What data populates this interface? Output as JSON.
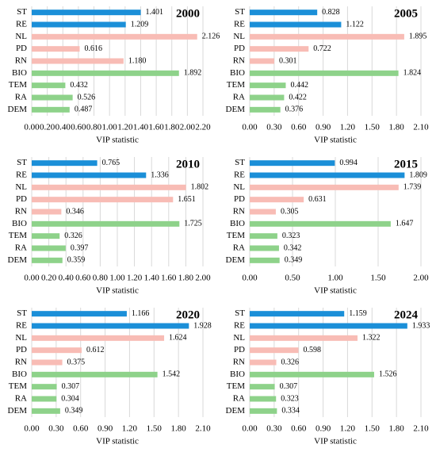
{
  "chart_data": [
    {
      "type": "bar",
      "orientation": "horizontal",
      "title": "2000",
      "x_label": "VIP statistic",
      "categories": [
        "ST",
        "RE",
        "NL",
        "PD",
        "RN",
        "BIO",
        "TEM",
        "RA",
        "DEM"
      ],
      "values": [
        1.401,
        1.209,
        2.126,
        0.616,
        1.18,
        1.892,
        0.432,
        0.526,
        0.487
      ],
      "value_labels": [
        "1.401",
        "1.209",
        "2.126",
        "0.616",
        "1.180",
        "1.892",
        "0.432",
        "0.526",
        "0.487"
      ],
      "colors": [
        "#1b8fd8",
        "#1b8fd8",
        "#f8bcb5",
        "#f8bcb5",
        "#f8bcb5",
        "#8ed28a",
        "#8ed28a",
        "#8ed28a",
        "#8ed28a"
      ],
      "xlim": [
        0,
        2.2
      ],
      "grid": true,
      "xticks": [
        {
          "value": 0,
          "label": "0.00"
        },
        {
          "value": 0.2,
          "label": "0.20"
        },
        {
          "value": 0.4,
          "label": "0.40"
        },
        {
          "value": 0.6,
          "label": "0.60"
        },
        {
          "value": 0.8,
          "label": "0.80"
        },
        {
          "value": 1,
          "label": "1.00"
        },
        {
          "value": 1.2,
          "label": "1.20"
        },
        {
          "value": 1.4,
          "label": "1.40"
        },
        {
          "value": 1.6,
          "label": "1.60"
        },
        {
          "value": 1.8,
          "label": "1.80"
        },
        {
          "value": 2,
          "label": "2.00"
        },
        {
          "value": 2.2,
          "label": "2.20"
        }
      ]
    },
    {
      "type": "bar",
      "orientation": "horizontal",
      "title": "2005",
      "x_label": "VIP statistic",
      "categories": [
        "ST",
        "RE",
        "NL",
        "PD",
        "RN",
        "BIO",
        "TEM",
        "RA",
        "DEM"
      ],
      "values": [
        0.828,
        1.122,
        1.895,
        0.722,
        0.301,
        1.824,
        0.442,
        0.422,
        0.376
      ],
      "colors": [
        "#1b8fd8",
        "#1b8fd8",
        "#f8bcb5",
        "#f8bcb5",
        "#f8bcb5",
        "#8ed28a",
        "#8ed28a",
        "#8ed28a",
        "#8ed28a"
      ],
      "xlim": [
        0,
        2.1
      ],
      "grid": true,
      "xticks": [
        {
          "value": 0,
          "label": "0.00"
        },
        {
          "value": 0.3,
          "label": "0.30"
        },
        {
          "value": 0.6,
          "label": "0.60"
        },
        {
          "value": 0.9,
          "label": "0.90"
        },
        {
          "value": 1.2,
          "label": "1.20"
        },
        {
          "value": 1.5,
          "label": "1.50"
        },
        {
          "value": 1.8,
          "label": "1.80"
        },
        {
          "value": 2.1,
          "label": "2.10"
        }
      ]
    },
    {
      "type": "bar",
      "orientation": "horizontal",
      "title": "2010",
      "x_label": "VIP statistic",
      "categories": [
        "ST",
        "RE",
        "NL",
        "PD",
        "RN",
        "BIO",
        "TEM",
        "RA",
        "DEM"
      ],
      "values": [
        0.765,
        1.336,
        1.802,
        1.651,
        0.346,
        1.725,
        0.326,
        0.397,
        0.359
      ],
      "colors": [
        "#1b8fd8",
        "#1b8fd8",
        "#f8bcb5",
        "#f8bcb5",
        "#f8bcb5",
        "#8ed28a",
        "#8ed28a",
        "#8ed28a",
        "#8ed28a"
      ],
      "xlim": [
        0,
        2
      ],
      "grid": true,
      "xticks": [
        {
          "value": 0,
          "label": "0.00"
        },
        {
          "value": 0.2,
          "label": "0.20"
        },
        {
          "value": 0.4,
          "label": "0.40"
        },
        {
          "value": 0.6,
          "label": "0.60"
        },
        {
          "value": 0.8,
          "label": "0.80"
        },
        {
          "value": 1,
          "label": "1.00"
        },
        {
          "value": 1.2,
          "label": "1.20"
        },
        {
          "value": 1.4,
          "label": "1.40"
        },
        {
          "value": 1.6,
          "label": "1.60"
        },
        {
          "value": 1.8,
          "label": "1.80"
        },
        {
          "value": 2,
          "label": "2.00"
        }
      ]
    },
    {
      "type": "bar",
      "orientation": "horizontal",
      "title": "2015",
      "x_label": "VIP statistic",
      "categories": [
        "ST",
        "RE",
        "NL",
        "PD",
        "RN",
        "BIO",
        "TEM",
        "RA",
        "DEM"
      ],
      "values": [
        0.994,
        1.809,
        1.739,
        0.631,
        0.305,
        1.647,
        0.323,
        0.342,
        0.349
      ],
      "colors": [
        "#1b8fd8",
        "#1b8fd8",
        "#f8bcb5",
        "#f8bcb5",
        "#f8bcb5",
        "#8ed28a",
        "#8ed28a",
        "#8ed28a",
        "#8ed28a"
      ],
      "xlim": [
        0,
        2
      ],
      "grid": true,
      "xticks": [
        {
          "value": 0,
          "label": "0.00"
        },
        {
          "value": 0.5,
          "label": "0.50"
        },
        {
          "value": 1,
          "label": "1.00"
        },
        {
          "value": 1.5,
          "label": "1.50"
        },
        {
          "value": 2,
          "label": "2.00"
        }
      ]
    },
    {
      "type": "bar",
      "orientation": "horizontal",
      "title": "2020",
      "x_label": "VIP statistic",
      "categories": [
        "ST",
        "RE",
        "NL",
        "PD",
        "RN",
        "BIO",
        "TEM",
        "RA",
        "DEM"
      ],
      "values": [
        1.166,
        1.928,
        1.624,
        0.612,
        0.375,
        1.542,
        0.307,
        0.304,
        0.349
      ],
      "colors": [
        "#1b8fd8",
        "#1b8fd8",
        "#f8bcb5",
        "#f8bcb5",
        "#f8bcb5",
        "#8ed28a",
        "#8ed28a",
        "#8ed28a",
        "#8ed28a"
      ],
      "xlim": [
        0,
        2.1
      ],
      "grid": true,
      "xticks": [
        {
          "value": 0,
          "label": "0.00"
        },
        {
          "value": 0.3,
          "label": "0.30"
        },
        {
          "value": 0.6,
          "label": "0.60"
        },
        {
          "value": 0.9,
          "label": "0.90"
        },
        {
          "value": 1.2,
          "label": "1.20"
        },
        {
          "value": 1.5,
          "label": "1.50"
        },
        {
          "value": 1.8,
          "label": "1.80"
        },
        {
          "value": 2.1,
          "label": "2.10"
        }
      ]
    },
    {
      "type": "bar",
      "orientation": "horizontal",
      "title": "2024",
      "x_label": "VIP statistic",
      "categories": [
        "ST",
        "RE",
        "NL",
        "PD",
        "RN",
        "BIO",
        "TEM",
        "RA",
        "DEM"
      ],
      "values": [
        1.159,
        1.933,
        1.322,
        0.598,
        0.326,
        1.526,
        0.307,
        0.323,
        0.334
      ],
      "colors": [
        "#1b8fd8",
        "#1b8fd8",
        "#f8bcb5",
        "#f8bcb5",
        "#f8bcb5",
        "#8ed28a",
        "#8ed28a",
        "#8ed28a",
        "#8ed28a"
      ],
      "xlim": [
        0,
        2.1
      ],
      "grid": true,
      "xticks": [
        {
          "value": 0,
          "label": "0.00"
        },
        {
          "value": 0.3,
          "label": "0.30"
        },
        {
          "value": 0.6,
          "label": "0.60"
        },
        {
          "value": 0.9,
          "label": "0.90"
        },
        {
          "value": 1.2,
          "label": "1.20"
        },
        {
          "value": 1.5,
          "label": "1.50"
        },
        {
          "value": 1.8,
          "label": "1.80"
        },
        {
          "value": 2.1,
          "label": "2.10"
        }
      ]
    }
  ]
}
